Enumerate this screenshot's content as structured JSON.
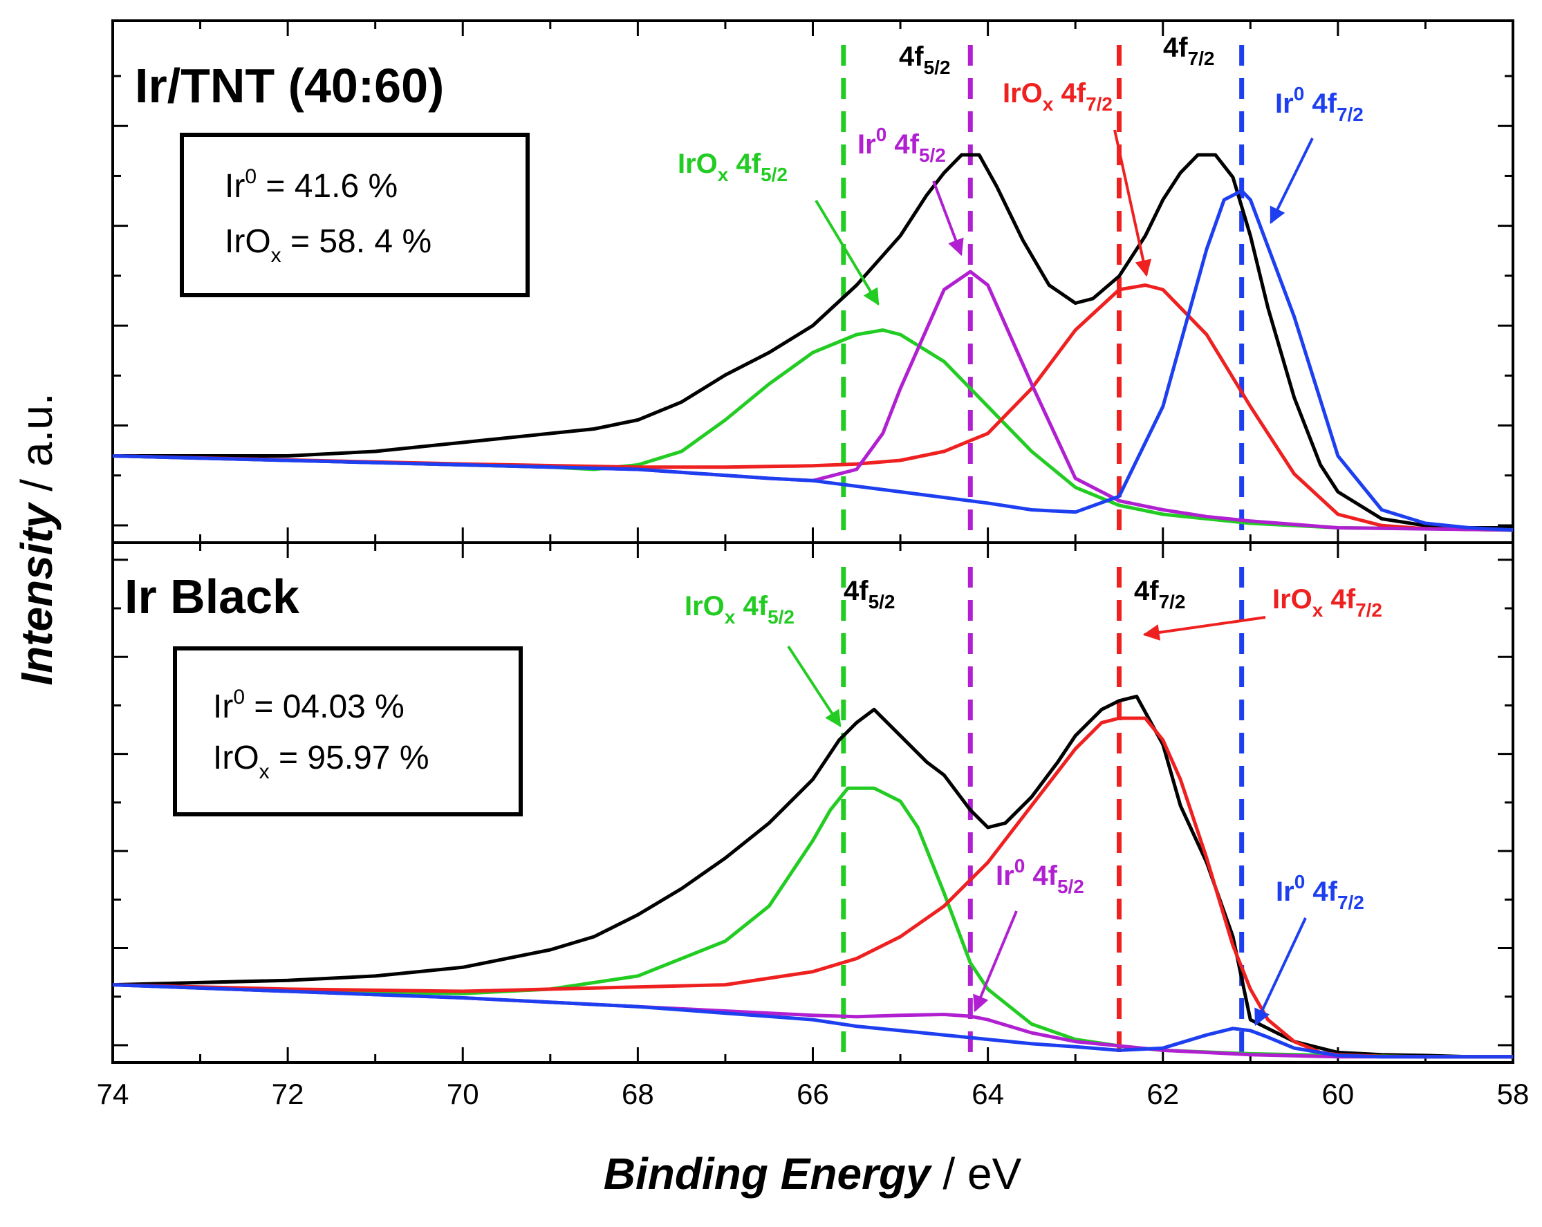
{
  "chart_data": {
    "type": "line",
    "xlabel": {
      "bold": "Binding Energy",
      "rest": " / eV"
    },
    "ylabel": {
      "bold": "Intensity",
      "rest": " / a.u."
    },
    "xlim": [
      74,
      58
    ],
    "x_ticks": [
      74,
      72,
      70,
      68,
      66,
      64,
      62,
      60,
      58
    ],
    "x_tick_labels": [
      "74",
      "72",
      "70",
      "68",
      "66",
      "64",
      "62",
      "60",
      "58"
    ],
    "reference_lines": [
      {
        "x": 65.65,
        "color": "#22cc22"
      },
      {
        "x": 64.2,
        "color": "#b020d0"
      },
      {
        "x": 62.5,
        "color": "#ee2020"
      },
      {
        "x": 61.1,
        "color": "#1d3ff0"
      }
    ],
    "panels": [
      {
        "id": "top",
        "title": "Ir/TNT (40:60)",
        "ylim": [
          0,
          1
        ],
        "box": [
          {
            "base": "Ir",
            "sup": "0",
            "sub": "",
            "value": " = 41.6 %"
          },
          {
            "base": "IrO",
            "sup": "",
            "sub": "x",
            "value": " = 58. 4 %"
          }
        ],
        "peak_labels": [
          {
            "base": "4f",
            "sub": "5/2",
            "color": "#000000"
          },
          {
            "base": "4f",
            "sub": "7/2",
            "color": "#000000"
          }
        ],
        "annotations": [
          {
            "pre": "IrO",
            "pre_sub": "x",
            "pre_sup": "",
            "main": " 4f",
            "sub": "5/2",
            "color": "#22cc22"
          },
          {
            "pre": "Ir",
            "pre_sub": "",
            "pre_sup": "0",
            "main": " 4f",
            "sub": "5/2",
            "color": "#b020d0"
          },
          {
            "pre": "IrO",
            "pre_sub": "x",
            "pre_sup": "",
            "main": " 4f",
            "sub": "7/2",
            "color": "#ee2020"
          },
          {
            "pre": "Ir",
            "pre_sub": "",
            "pre_sup": "0",
            "main": " 4f",
            "sub": "7/2",
            "color": "#1d3ff0"
          }
        ],
        "series": [
          {
            "name": "Measured",
            "color": "#000000",
            "x": [
              74,
              73,
              72,
              71,
              70,
              69.5,
              69,
              68.5,
              68,
              67.5,
              67,
              66.5,
              66,
              65.5,
              65,
              64.7,
              64.5,
              64.3,
              64.1,
              63.9,
              63.6,
              63.3,
              63.0,
              62.8,
              62.5,
              62.2,
              62.0,
              61.8,
              61.6,
              61.4,
              61.2,
              61.0,
              60.8,
              60.5,
              60.2,
              60.0,
              59.5,
              59,
              58.5,
              58
            ],
            "y": [
              0.17,
              0.17,
              0.17,
              0.18,
              0.2,
              0.21,
              0.22,
              0.23,
              0.25,
              0.29,
              0.35,
              0.4,
              0.46,
              0.55,
              0.66,
              0.75,
              0.8,
              0.84,
              0.84,
              0.77,
              0.65,
              0.55,
              0.51,
              0.52,
              0.57,
              0.66,
              0.74,
              0.8,
              0.84,
              0.84,
              0.79,
              0.66,
              0.5,
              0.3,
              0.15,
              0.09,
              0.03,
              0.015,
              0.01,
              0.01
            ]
          },
          {
            "name": "IrOx 4f5/2",
            "color": "#22cc22",
            "x": [
              74,
              72,
              70,
              69,
              68.5,
              68,
              67.5,
              67,
              66.5,
              66,
              65.5,
              65.2,
              65,
              64.5,
              64,
              63.5,
              63,
              62.5,
              62,
              61,
              60,
              59,
              58
            ],
            "y": [
              0.17,
              0.16,
              0.15,
              0.145,
              0.14,
              0.15,
              0.18,
              0.25,
              0.33,
              0.4,
              0.44,
              0.45,
              0.44,
              0.38,
              0.28,
              0.18,
              0.1,
              0.06,
              0.04,
              0.02,
              0.01,
              0.008,
              0.005
            ]
          },
          {
            "name": "IrOx 4f7/2",
            "color": "#ee2020",
            "x": [
              74,
              70,
              68,
              67,
              66,
              65.5,
              65,
              64.5,
              64,
              63.5,
              63,
              62.5,
              62.2,
              62,
              61.5,
              61,
              60.5,
              60,
              59.5,
              59,
              58
            ],
            "y": [
              0.17,
              0.152,
              0.145,
              0.145,
              0.148,
              0.152,
              0.16,
              0.18,
              0.22,
              0.32,
              0.45,
              0.54,
              0.55,
              0.54,
              0.44,
              0.28,
              0.13,
              0.04,
              0.015,
              0.008,
              0.005
            ]
          },
          {
            "name": "Ir0 4f5/2",
            "color": "#b020d0",
            "x": [
              74,
              72,
              70,
              68,
              66.5,
              66,
              65.5,
              65.2,
              65,
              64.5,
              64.2,
              64,
              63.5,
              63,
              62.5,
              62,
              61.5,
              61,
              60,
              58
            ],
            "y": [
              0.17,
              0.16,
              0.15,
              0.14,
              0.12,
              0.115,
              0.14,
              0.22,
              0.32,
              0.54,
              0.58,
              0.55,
              0.33,
              0.12,
              0.07,
              0.05,
              0.035,
              0.025,
              0.01,
              0.005
            ]
          },
          {
            "name": "Ir0 4f7/2",
            "color": "#1d3ff0",
            "x": [
              74,
              72,
              70,
              68,
              66.5,
              66,
              65,
              64,
              63.5,
              63,
              62.5,
              62,
              61.5,
              61.3,
              61.1,
              61,
              60.5,
              60,
              59.5,
              59,
              58.5,
              58
            ],
            "y": [
              0.17,
              0.16,
              0.15,
              0.14,
              0.12,
              0.115,
              0.09,
              0.065,
              0.05,
              0.045,
              0.08,
              0.28,
              0.63,
              0.74,
              0.76,
              0.74,
              0.48,
              0.17,
              0.05,
              0.02,
              0.01,
              0.005
            ]
          }
        ]
      },
      {
        "id": "bottom",
        "title": "Ir Black",
        "ylim": [
          0,
          1
        ],
        "box": [
          {
            "base": "Ir",
            "sup": "0",
            "sub": "",
            "value": " = 04.03 %"
          },
          {
            "base": "IrO",
            "sup": "",
            "sub": "x",
            "value": " = 95.97 %"
          }
        ],
        "peak_labels": [
          {
            "base": "4f",
            "sub": "5/2",
            "color": "#000000"
          },
          {
            "base": "4f",
            "sub": "7/2",
            "color": "#000000"
          }
        ],
        "annotations": [
          {
            "pre": "IrO",
            "pre_sub": "x",
            "pre_sup": "",
            "main": " 4f",
            "sub": "5/2",
            "color": "#22cc22"
          },
          {
            "pre": "Ir",
            "pre_sub": "",
            "pre_sup": "0",
            "main": " 4f",
            "sub": "5/2",
            "color": "#b020d0"
          },
          {
            "pre": "IrO",
            "pre_sub": "x",
            "pre_sup": "",
            "main": " 4f",
            "sub": "7/2",
            "color": "#ee2020"
          },
          {
            "pre": "Ir",
            "pre_sub": "",
            "pre_sup": "0",
            "main": " 4f",
            "sub": "7/2",
            "color": "#1d3ff0"
          }
        ],
        "series": [
          {
            "name": "Measured",
            "color": "#000000",
            "x": [
              74,
              72,
              71,
              70,
              69,
              68.5,
              68,
              67.5,
              67,
              66.5,
              66,
              65.7,
              65.5,
              65.3,
              65,
              64.7,
              64.5,
              64.2,
              64.0,
              63.8,
              63.5,
              63.2,
              63.0,
              62.7,
              62.5,
              62.3,
              62.0,
              61.8,
              61.5,
              61.2,
              61.0,
              60.5,
              60,
              59.5,
              59,
              58.5,
              58
            ],
            "y": [
              0.17,
              0.18,
              0.19,
              0.21,
              0.25,
              0.28,
              0.33,
              0.39,
              0.46,
              0.54,
              0.64,
              0.73,
              0.77,
              0.8,
              0.74,
              0.68,
              0.65,
              0.57,
              0.53,
              0.54,
              0.6,
              0.68,
              0.74,
              0.8,
              0.82,
              0.83,
              0.72,
              0.58,
              0.45,
              0.28,
              0.09,
              0.04,
              0.015,
              0.01,
              0.008,
              0.005,
              0.005
            ]
          },
          {
            "name": "IrOx 4f5/2",
            "color": "#22cc22",
            "x": [
              74,
              72,
              70,
              69,
              68,
              67,
              66.5,
              66,
              65.8,
              65.6,
              65.3,
              65,
              64.8,
              64.5,
              64.2,
              64,
              63.5,
              63,
              62.5,
              62,
              61,
              60,
              59,
              58
            ],
            "y": [
              0.17,
              0.155,
              0.15,
              0.16,
              0.19,
              0.27,
              0.35,
              0.5,
              0.57,
              0.62,
              0.62,
              0.59,
              0.53,
              0.38,
              0.22,
              0.16,
              0.08,
              0.045,
              0.03,
              0.02,
              0.012,
              0.008,
              0.005,
              0.005
            ]
          },
          {
            "name": "IrOx 4f7/2",
            "color": "#ee2020",
            "x": [
              74,
              72,
              70,
              69,
              68,
              67,
              66,
              65.5,
              65,
              64.5,
              64,
              63.5,
              63,
              62.7,
              62.5,
              62.2,
              62,
              61.8,
              61.5,
              61.2,
              61,
              60.8,
              60.5,
              60.2,
              60,
              59.5,
              59,
              58
            ],
            "y": [
              0.17,
              0.16,
              0.155,
              0.16,
              0.165,
              0.17,
              0.2,
              0.23,
              0.28,
              0.35,
              0.45,
              0.58,
              0.71,
              0.77,
              0.78,
              0.78,
              0.73,
              0.64,
              0.46,
              0.26,
              0.16,
              0.09,
              0.04,
              0.015,
              0.01,
              0.006,
              0.005,
              0.005
            ]
          },
          {
            "name": "Ir0 4f5/2",
            "color": "#b020d0",
            "x": [
              74,
              72,
              70,
              68,
              66,
              65.5,
              65,
              64.5,
              64.2,
              64,
              63.5,
              63,
              62.5,
              62,
              61.5,
              61,
              60,
              59,
              58
            ],
            "y": [
              0.17,
              0.155,
              0.14,
              0.12,
              0.1,
              0.097,
              0.1,
              0.102,
              0.098,
              0.09,
              0.06,
              0.04,
              0.03,
              0.02,
              0.015,
              0.01,
              0.005,
              0.005,
              0.005
            ]
          },
          {
            "name": "Ir0 4f7/2",
            "color": "#1d3ff0",
            "x": [
              74,
              72,
              70,
              68,
              66,
              65.5,
              65,
              64.5,
              64,
              63.5,
              63,
              62.5,
              62,
              61.5,
              61.2,
              61.0,
              60.8,
              60.5,
              60,
              59.5,
              59,
              58
            ],
            "y": [
              0.17,
              0.155,
              0.14,
              0.12,
              0.09,
              0.075,
              0.065,
              0.055,
              0.045,
              0.035,
              0.028,
              0.02,
              0.025,
              0.055,
              0.07,
              0.065,
              0.05,
              0.025,
              0.008,
              0.005,
              0.005,
              0.005
            ]
          }
        ]
      }
    ]
  }
}
